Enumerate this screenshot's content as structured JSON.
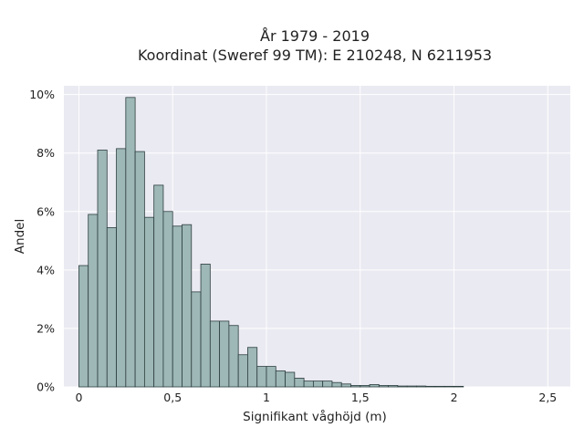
{
  "chart_data": {
    "type": "bar",
    "title": "År 1979 - 2019",
    "subtitle": "Koordinat (Sweref 99 TM): E 210248, N 6211953",
    "xlabel": "Signifikant våghöjd (m)",
    "ylabel": "Andel",
    "xlim": [
      -0.08,
      2.62
    ],
    "ylim": [
      0,
      10.3
    ],
    "grid": true,
    "x_ticks": [
      {
        "value": 0,
        "label": "0"
      },
      {
        "value": 0.5,
        "label": "0,5"
      },
      {
        "value": 1,
        "label": "1"
      },
      {
        "value": 1.5,
        "label": "1,5"
      },
      {
        "value": 2,
        "label": "2"
      },
      {
        "value": 2.5,
        "label": "2,5"
      }
    ],
    "y_ticks": [
      {
        "value": 0,
        "label": "0%"
      },
      {
        "value": 2,
        "label": "2%"
      },
      {
        "value": 4,
        "label": "4%"
      },
      {
        "value": 6,
        "label": "6%"
      },
      {
        "value": 8,
        "label": "8%"
      },
      {
        "value": 10,
        "label": "10%"
      }
    ],
    "bin_width": 0.05,
    "bin_starts": [
      0,
      0.05,
      0.1,
      0.15,
      0.2,
      0.25,
      0.3,
      0.35,
      0.4,
      0.45,
      0.5,
      0.55,
      0.6,
      0.65,
      0.7,
      0.75,
      0.8,
      0.85,
      0.9,
      0.95,
      1.0,
      1.05,
      1.1,
      1.15,
      1.2,
      1.25,
      1.3,
      1.35,
      1.4,
      1.45,
      1.5,
      1.55,
      1.6,
      1.65,
      1.7,
      1.75,
      1.8,
      1.85,
      1.9,
      1.95,
      2.0
    ],
    "values": [
      4.15,
      5.9,
      8.1,
      5.45,
      8.15,
      9.9,
      8.05,
      5.8,
      6.9,
      6.0,
      5.5,
      5.55,
      3.25,
      4.2,
      2.25,
      2.25,
      2.1,
      1.1,
      1.35,
      0.7,
      0.7,
      0.55,
      0.5,
      0.3,
      0.2,
      0.2,
      0.2,
      0.15,
      0.1,
      0.05,
      0.05,
      0.08,
      0.05,
      0.05,
      0.03,
      0.03,
      0.03,
      0.02,
      0.02,
      0.02,
      0.02
    ],
    "colors": {
      "plot_background": "#eaeaf2",
      "bar_fill": "#9eb7b7",
      "bar_edge": "#2d3f3f",
      "grid": "#ffffff"
    }
  }
}
